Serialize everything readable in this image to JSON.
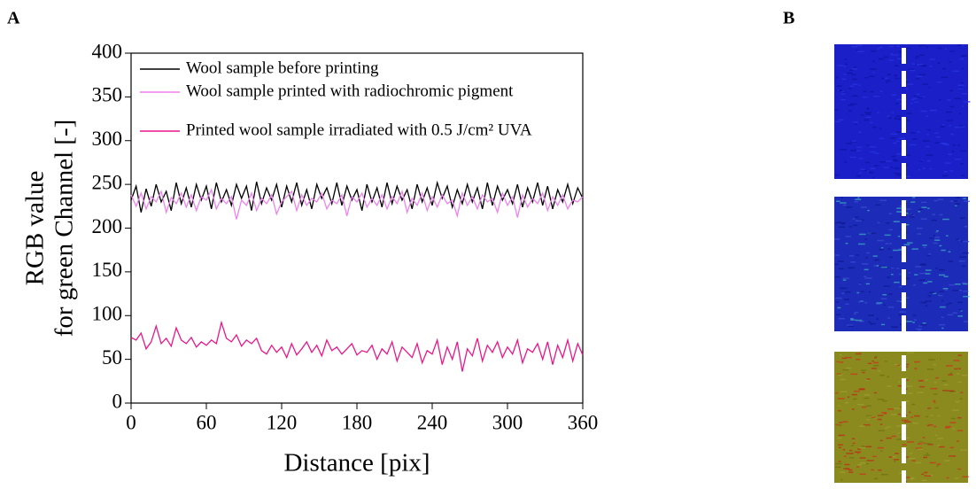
{
  "panel_labels": [
    "A",
    "B"
  ],
  "chart_data": {
    "type": "line",
    "xlabel": "Distance [pix]",
    "ylabel": [
      "RGB value",
      "for green Channel [-]"
    ],
    "x": [
      0,
      4,
      8,
      12,
      16,
      20,
      24,
      28,
      32,
      36,
      40,
      44,
      48,
      52,
      56,
      60,
      64,
      68,
      72,
      76,
      80,
      84,
      88,
      92,
      96,
      100,
      104,
      108,
      112,
      116,
      120,
      124,
      128,
      132,
      136,
      140,
      144,
      148,
      152,
      156,
      160,
      164,
      168,
      172,
      176,
      180,
      184,
      188,
      192,
      196,
      200,
      204,
      208,
      212,
      216,
      220,
      224,
      228,
      232,
      236,
      240,
      244,
      248,
      252,
      256,
      260,
      264,
      268,
      272,
      276,
      280,
      284,
      288,
      292,
      296,
      300,
      304,
      308,
      312,
      316,
      320,
      324,
      328,
      332,
      336,
      340,
      344,
      348,
      352,
      356,
      360
    ],
    "series": [
      {
        "name": "Wool sample before printing",
        "color": "#000000",
        "values": [
          232,
          248,
          218,
          245,
          225,
          250,
          230,
          242,
          220,
          252,
          228,
          246,
          224,
          250,
          232,
          248,
          222,
          252,
          230,
          244,
          226,
          250,
          234,
          248,
          220,
          253,
          228,
          246,
          232,
          250,
          224,
          248,
          230,
          252,
          226,
          244,
          222,
          250,
          234,
          246,
          228,
          252,
          226,
          248,
          232,
          244,
          220,
          250,
          230,
          246,
          224,
          252,
          228,
          248,
          232,
          244,
          222,
          250,
          230,
          246,
          226,
          252,
          234,
          248,
          224,
          244,
          228,
          250,
          230,
          246,
          222,
          252,
          226,
          248,
          232,
          244,
          228,
          250,
          224,
          246,
          230,
          252,
          226,
          248,
          222,
          244,
          230,
          250,
          228,
          246,
          234
        ]
      },
      {
        "name": "Wool sample printed with radiochromic pigment",
        "color": "#ee82ee",
        "values": [
          238,
          225,
          240,
          222,
          236,
          230,
          242,
          218,
          235,
          228,
          240,
          224,
          238,
          220,
          236,
          232,
          244,
          222,
          234,
          228,
          236,
          210,
          232,
          226,
          240,
          220,
          234,
          228,
          238,
          216,
          230,
          236,
          242,
          220,
          238,
          226,
          234,
          230,
          240,
          222,
          232,
          228,
          238,
          214,
          236,
          230,
          240,
          224,
          234,
          226,
          238,
          222,
          236,
          228,
          242,
          218,
          234,
          226,
          240,
          220,
          236,
          224,
          238,
          228,
          232,
          214,
          240,
          226,
          236,
          222,
          238,
          230,
          234,
          218,
          240,
          226,
          236,
          212,
          238,
          224,
          234,
          228,
          240,
          220,
          236,
          226,
          238,
          222,
          232,
          230,
          236
        ]
      },
      {
        "name": "Printed wool sample irradiated with 0.5 J/cm² UVA",
        "color": "#e8178a",
        "values": [
          75,
          72,
          80,
          62,
          70,
          88,
          68,
          74,
          65,
          86,
          72,
          68,
          75,
          64,
          70,
          66,
          72,
          68,
          92,
          74,
          70,
          78,
          65,
          72,
          68,
          74,
          60,
          56,
          66,
          58,
          64,
          52,
          68,
          55,
          62,
          70,
          58,
          66,
          54,
          72,
          60,
          64,
          56,
          62,
          68,
          55,
          60,
          58,
          66,
          50,
          62,
          56,
          70,
          48,
          64,
          58,
          52,
          68,
          46,
          60,
          56,
          72,
          44,
          64,
          50,
          70,
          36,
          62,
          54,
          74,
          48,
          66,
          58,
          70,
          52,
          64,
          56,
          72,
          46,
          62,
          58,
          68,
          50,
          70,
          44,
          66,
          52,
          72,
          48,
          68,
          55
        ]
      }
    ],
    "xlim": [
      0,
      360
    ],
    "xticks": [
      0,
      60,
      120,
      180,
      240,
      300,
      360
    ],
    "ylim": [
      0,
      400
    ],
    "yticks": [
      0,
      50,
      100,
      150,
      200,
      250,
      300,
      350,
      400
    ],
    "legend": "upper left"
  }
}
